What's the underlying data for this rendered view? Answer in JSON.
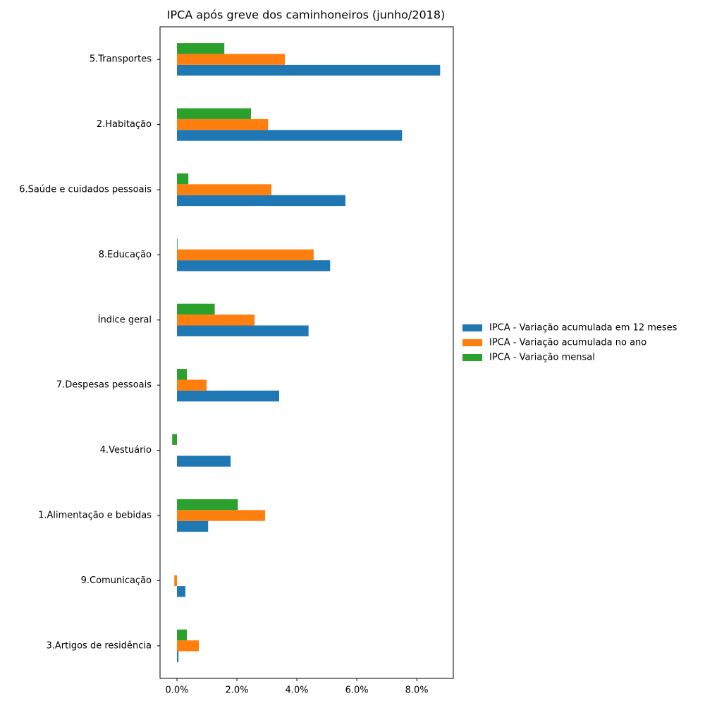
{
  "chart_data": {
    "type": "barh",
    "title": "IPCA após greve dos caminhoneiros (junho/2018)",
    "categories": [
      "5.Transportes",
      "2.Habitação",
      "6.Saúde e cuidados pessoais",
      "8.Educação",
      "Índice geral",
      "7.Despesas pessoais",
      "4.Vestuário",
      "1.Alimentação e bebidas",
      "9.Comunicação",
      "3.Artigos de residência"
    ],
    "series": [
      {
        "name": "IPCA - Variação acumulada em 12 meses",
        "color": "#1f77b4",
        "values": [
          8.78,
          7.51,
          5.62,
          5.11,
          4.39,
          3.41,
          1.79,
          1.04,
          0.28,
          0.05
        ]
      },
      {
        "name": "IPCA - Variação acumulada no ano",
        "color": "#ff7f0e",
        "values": [
          3.6,
          3.04,
          3.15,
          4.56,
          2.59,
          0.99,
          0,
          2.94,
          -0.09,
          0.73
        ]
      },
      {
        "name": "IPCA - Variação mensal",
        "color": "#2ca02c",
        "values": [
          1.58,
          2.47,
          0.38,
          0.02,
          1.26,
          0.33,
          -0.16,
          2.03,
          0,
          0.33
        ]
      }
    ],
    "xlim": [
      -0.565,
      9.22
    ],
    "xticks": [
      {
        "value": 0,
        "label": "0.0%"
      },
      {
        "value": 2,
        "label": "2.0%"
      },
      {
        "value": 4,
        "label": "4.0%"
      },
      {
        "value": 6,
        "label": "6.0%"
      },
      {
        "value": 8,
        "label": "8.0%"
      }
    ],
    "legend": "right"
  }
}
